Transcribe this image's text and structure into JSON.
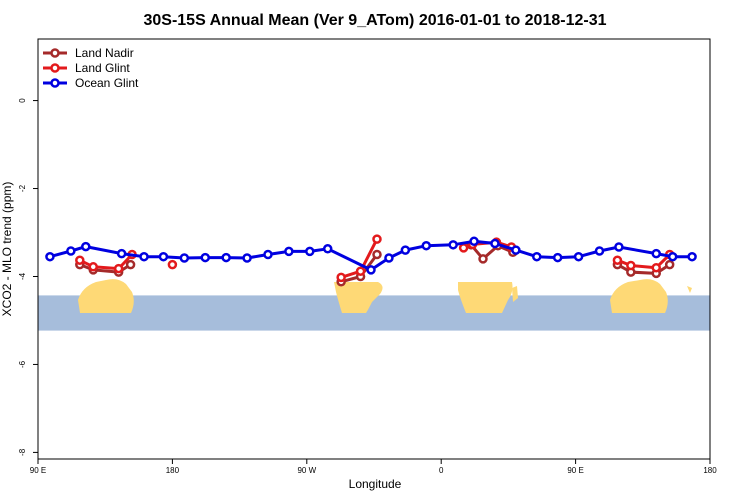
{
  "chart_data": {
    "type": "line",
    "title": "30S-15S Annual Mean (Ver 9_ATom)   2016-01-01 to 2018-12-31",
    "xlabel": "Longitude",
    "ylabel": "XCO2 - MLO trend (ppm)",
    "xlim": [
      90,
      540
    ],
    "ylim": [
      -8.15,
      1.4
    ],
    "x_ticks": [
      {
        "value": 90,
        "label": "90 E"
      },
      {
        "value": 180,
        "label": "180"
      },
      {
        "value": 270,
        "label": "90 W"
      },
      {
        "value": 360,
        "label": "0"
      },
      {
        "value": 450,
        "label": "90 E"
      },
      {
        "value": 540,
        "label": "180"
      }
    ],
    "y_ticks": [
      {
        "value": 0,
        "label": "0"
      },
      {
        "value": -2,
        "label": "-2"
      },
      {
        "value": -4,
        "label": "-4"
      },
      {
        "value": -6,
        "label": "-6"
      },
      {
        "value": -8,
        "label": "-8"
      }
    ],
    "legend_position": "top-left",
    "map_strip": {
      "ocean_color": "#a6bddb",
      "land_color": "#fed976",
      "y_top": -4.43,
      "y_bottom": -5.23
    },
    "series": [
      {
        "name": "Land Nadir",
        "color": "#a52a2a",
        "segments": [
          [
            [
              118,
              -3.73
            ],
            [
              127,
              -3.85
            ],
            [
              144,
              -3.9
            ],
            [
              152,
              -3.73
            ]
          ],
          [
            [
              293,
              -4.12
            ],
            [
              306,
              -4.0
            ],
            [
              317,
              -3.5
            ]
          ],
          [
            [
              380,
              -3.28
            ],
            [
              388,
              -3.6
            ],
            [
              398,
              -3.3
            ],
            [
              408,
              -3.45
            ]
          ],
          [
            [
              478,
              -3.73
            ],
            [
              487,
              -3.9
            ],
            [
              504,
              -3.93
            ],
            [
              513,
              -3.73
            ]
          ]
        ]
      },
      {
        "name": "Land Glint",
        "color": "#e31a1c",
        "segments": [
          [
            [
              118,
              -3.63
            ],
            [
              127,
              -3.78
            ],
            [
              144,
              -3.82
            ],
            [
              153,
              -3.5
            ]
          ],
          [
            [
              180,
              -3.73
            ]
          ],
          [
            [
              293,
              -4.02
            ],
            [
              306,
              -3.88
            ],
            [
              317,
              -3.15
            ]
          ],
          [
            [
              375,
              -3.35
            ],
            [
              381,
              -3.27
            ],
            [
              397,
              -3.22
            ],
            [
              407,
              -3.33
            ]
          ],
          [
            [
              478,
              -3.63
            ],
            [
              487,
              -3.75
            ],
            [
              504,
              -3.8
            ],
            [
              513,
              -3.5
            ]
          ]
        ]
      },
      {
        "name": "Ocean Glint",
        "color": "#0000e0",
        "segments": [
          [
            [
              98,
              -3.55
            ],
            [
              112,
              -3.42
            ],
            [
              122,
              -3.32
            ],
            [
              146,
              -3.48
            ],
            [
              161,
              -3.55
            ],
            [
              174,
              -3.55
            ],
            [
              188,
              -3.58
            ],
            [
              202,
              -3.57
            ],
            [
              216,
              -3.57
            ],
            [
              230,
              -3.58
            ],
            [
              244,
              -3.5
            ],
            [
              258,
              -3.43
            ],
            [
              272,
              -3.43
            ],
            [
              284,
              -3.37
            ],
            [
              313,
              -3.85
            ],
            [
              325,
              -3.58
            ],
            [
              336,
              -3.4
            ],
            [
              350,
              -3.3
            ],
            [
              368,
              -3.28
            ],
            [
              382,
              -3.2
            ],
            [
              396,
              -3.25
            ],
            [
              410,
              -3.4
            ],
            [
              424,
              -3.55
            ],
            [
              438,
              -3.57
            ],
            [
              452,
              -3.55
            ],
            [
              466,
              -3.42
            ],
            [
              479,
              -3.33
            ],
            [
              504,
              -3.48
            ],
            [
              515,
              -3.55
            ],
            [
              528,
              -3.55
            ]
          ]
        ]
      }
    ]
  }
}
